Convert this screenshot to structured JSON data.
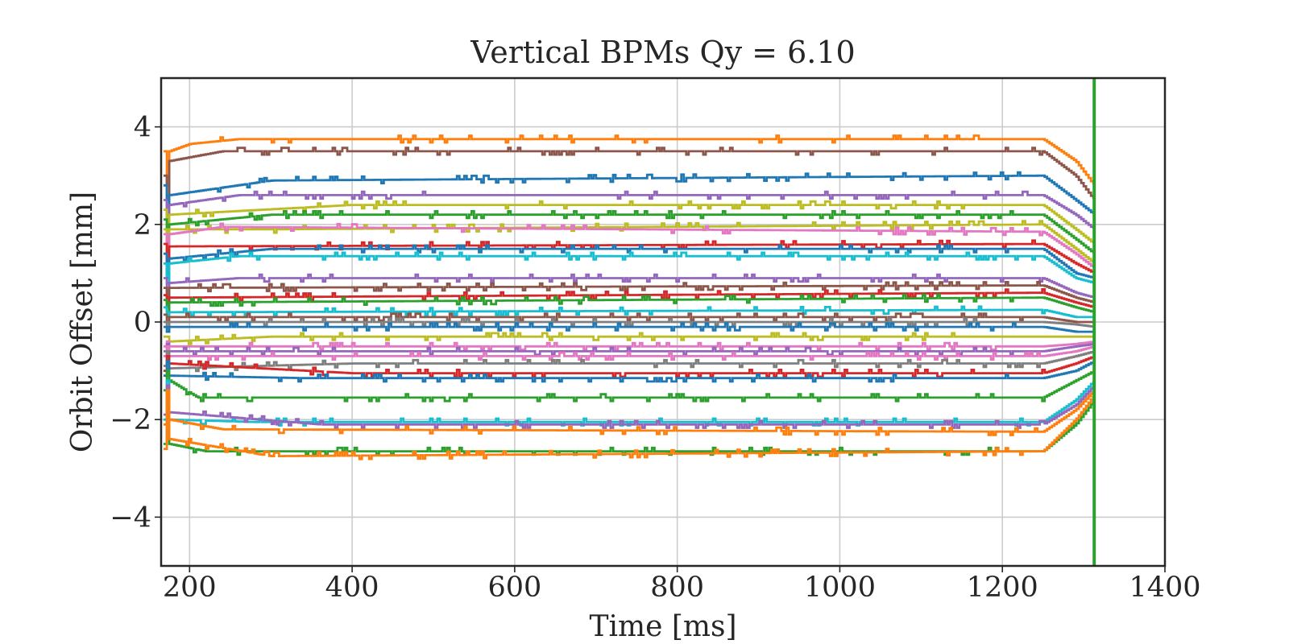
{
  "chart_data": {
    "type": "line",
    "title": "Vertical BPMs Qy = 6.10",
    "xlabel": "Time [ms]",
    "ylabel": "Orbit Offset [mm]",
    "xlim": [
      165,
      1400
    ],
    "ylim": [
      -5,
      5
    ],
    "xticks": [
      200,
      400,
      600,
      800,
      1000,
      1200,
      1400
    ],
    "yticks": [
      -4,
      -2,
      0,
      2,
      4
    ],
    "xtick_labels": [
      "200",
      "400",
      "600",
      "800",
      "1000",
      "1200",
      "1400"
    ],
    "ytick_labels": [
      "−4",
      "−2",
      "0",
      "2",
      "4"
    ],
    "grid": true,
    "legend": "none",
    "vline": {
      "x": 1313,
      "color": "#2ca02c"
    },
    "series": [
      {
        "color": "#ff7f0e",
        "start": 3.5,
        "points": [
          [
            175,
            3.5
          ],
          [
            200,
            3.65
          ],
          [
            260,
            3.75
          ],
          [
            1250,
            3.75
          ],
          [
            1290,
            3.3
          ],
          [
            1313,
            2.8
          ]
        ]
      },
      {
        "color": "#8c564b",
        "start": 3.0,
        "points": [
          [
            175,
            3.3
          ],
          [
            240,
            3.5
          ],
          [
            1250,
            3.5
          ],
          [
            1290,
            3.0
          ],
          [
            1313,
            2.5
          ]
        ]
      },
      {
        "color": "#1f77b4",
        "start": 2.8,
        "points": [
          [
            175,
            2.6
          ],
          [
            300,
            2.9
          ],
          [
            1250,
            3.0
          ],
          [
            1290,
            2.5
          ],
          [
            1313,
            2.2
          ]
        ]
      },
      {
        "color": "#9467bd",
        "start": 2.5,
        "points": [
          [
            175,
            2.4
          ],
          [
            260,
            2.6
          ],
          [
            1250,
            2.6
          ],
          [
            1290,
            2.2
          ],
          [
            1313,
            1.9
          ]
        ]
      },
      {
        "color": "#bcbd22",
        "start": 2.3,
        "points": [
          [
            175,
            2.2
          ],
          [
            400,
            2.4
          ],
          [
            1250,
            2.4
          ],
          [
            1290,
            1.9
          ],
          [
            1313,
            1.6
          ]
        ]
      },
      {
        "color": "#2ca02c",
        "start": 2.1,
        "points": [
          [
            175,
            2.0
          ],
          [
            300,
            2.2
          ],
          [
            1250,
            2.2
          ],
          [
            1290,
            1.7
          ],
          [
            1313,
            1.4
          ]
        ]
      },
      {
        "color": "#bcbd22",
        "start": 1.9,
        "points": [
          [
            175,
            1.9
          ],
          [
            300,
            1.9
          ],
          [
            1250,
            2.0
          ],
          [
            1290,
            1.5
          ],
          [
            1313,
            1.2
          ]
        ]
      },
      {
        "color": "#e377c2",
        "start": 1.8,
        "points": [
          [
            175,
            1.8
          ],
          [
            240,
            1.95
          ],
          [
            1250,
            1.85
          ],
          [
            1290,
            1.4
          ],
          [
            1313,
            1.1
          ]
        ]
      },
      {
        "color": "#d62728",
        "start": 1.6,
        "points": [
          [
            175,
            1.55
          ],
          [
            1250,
            1.6
          ],
          [
            1290,
            1.2
          ],
          [
            1313,
            1.0
          ]
        ]
      },
      {
        "color": "#1f77b4",
        "start": 1.4,
        "points": [
          [
            175,
            1.3
          ],
          [
            300,
            1.5
          ],
          [
            1250,
            1.5
          ],
          [
            1290,
            1.0
          ],
          [
            1313,
            0.9
          ]
        ]
      },
      {
        "color": "#17becf",
        "start": 1.2,
        "points": [
          [
            175,
            1.2
          ],
          [
            260,
            1.35
          ],
          [
            1250,
            1.35
          ],
          [
            1290,
            0.9
          ],
          [
            1313,
            0.8
          ]
        ]
      },
      {
        "color": "#9467bd",
        "start": 0.9,
        "points": [
          [
            175,
            0.8
          ],
          [
            260,
            0.9
          ],
          [
            1250,
            0.9
          ],
          [
            1290,
            0.6
          ],
          [
            1313,
            0.5
          ]
        ]
      },
      {
        "color": "#8c564b",
        "start": 0.7,
        "points": [
          [
            175,
            0.7
          ],
          [
            1250,
            0.75
          ],
          [
            1290,
            0.5
          ],
          [
            1313,
            0.4
          ]
        ]
      },
      {
        "color": "#d62728",
        "start": 0.55,
        "points": [
          [
            175,
            0.5
          ],
          [
            1250,
            0.6
          ],
          [
            1290,
            0.4
          ],
          [
            1313,
            0.3
          ]
        ]
      },
      {
        "color": "#2ca02c",
        "start": 0.45,
        "points": [
          [
            175,
            0.4
          ],
          [
            1250,
            0.5
          ],
          [
            1290,
            0.3
          ],
          [
            1313,
            0.2
          ]
        ]
      },
      {
        "color": "#17becf",
        "start": 0.3,
        "points": [
          [
            175,
            0.2
          ],
          [
            1250,
            0.25
          ],
          [
            1290,
            0.1
          ],
          [
            1313,
            0.1
          ]
        ]
      },
      {
        "color": "#8c564b",
        "start": 0.15,
        "points": [
          [
            175,
            0.1
          ],
          [
            1250,
            0.1
          ],
          [
            1290,
            0.0
          ],
          [
            1313,
            0.0
          ]
        ]
      },
      {
        "color": "#7f7f7f",
        "start": 0.0,
        "points": [
          [
            175,
            0.0
          ],
          [
            1250,
            0.0
          ],
          [
            1290,
            -0.05
          ],
          [
            1313,
            -0.1
          ]
        ]
      },
      {
        "color": "#1f77b4",
        "start": -0.1,
        "points": [
          [
            175,
            -0.1
          ],
          [
            1250,
            -0.1
          ],
          [
            1290,
            -0.2
          ],
          [
            1313,
            -0.2
          ]
        ]
      },
      {
        "color": "#bcbd22",
        "start": -0.3,
        "points": [
          [
            175,
            -0.4
          ],
          [
            300,
            -0.3
          ],
          [
            1250,
            -0.3
          ],
          [
            1290,
            -0.3
          ],
          [
            1313,
            -0.3
          ]
        ]
      },
      {
        "color": "#e377c2",
        "start": -0.5,
        "points": [
          [
            175,
            -0.5
          ],
          [
            1250,
            -0.5
          ],
          [
            1290,
            -0.45
          ],
          [
            1313,
            -0.4
          ]
        ]
      },
      {
        "color": "#9467bd",
        "start": -0.6,
        "points": [
          [
            175,
            -0.6
          ],
          [
            1250,
            -0.6
          ],
          [
            1290,
            -0.5
          ],
          [
            1313,
            -0.45
          ]
        ]
      },
      {
        "color": "#e377c2",
        "start": -0.7,
        "points": [
          [
            175,
            -0.7
          ],
          [
            1250,
            -0.7
          ],
          [
            1290,
            -0.6
          ],
          [
            1313,
            -0.5
          ]
        ]
      },
      {
        "color": "#7f7f7f",
        "start": -0.9,
        "points": [
          [
            175,
            -0.95
          ],
          [
            400,
            -0.85
          ],
          [
            1250,
            -0.85
          ],
          [
            1290,
            -0.7
          ],
          [
            1313,
            -0.6
          ]
        ]
      },
      {
        "color": "#d62728",
        "start": -1.0,
        "points": [
          [
            175,
            -0.85
          ],
          [
            400,
            -1.05
          ],
          [
            1250,
            -1.05
          ],
          [
            1290,
            -0.85
          ],
          [
            1313,
            -0.7
          ]
        ]
      },
      {
        "color": "#1f77b4",
        "start": -1.1,
        "points": [
          [
            175,
            -1.1
          ],
          [
            340,
            -1.15
          ],
          [
            1250,
            -1.15
          ],
          [
            1290,
            -1.0
          ],
          [
            1313,
            -0.8
          ]
        ]
      },
      {
        "color": "#2ca02c",
        "start": -1.4,
        "points": [
          [
            175,
            -1.2
          ],
          [
            210,
            -1.55
          ],
          [
            1250,
            -1.55
          ],
          [
            1290,
            -1.2
          ],
          [
            1313,
            -1.0
          ]
        ]
      },
      {
        "color": "#17becf",
        "start": -2.0,
        "points": [
          [
            175,
            -2.0
          ],
          [
            280,
            -2.05
          ],
          [
            1250,
            -2.05
          ],
          [
            1290,
            -1.6
          ],
          [
            1313,
            -1.2
          ]
        ]
      },
      {
        "color": "#9467bd",
        "start": -1.9,
        "points": [
          [
            175,
            -1.85
          ],
          [
            360,
            -2.1
          ],
          [
            1250,
            -2.1
          ],
          [
            1290,
            -1.7
          ],
          [
            1313,
            -1.3
          ]
        ]
      },
      {
        "color": "#ff7f0e",
        "start": -2.1,
        "points": [
          [
            175,
            -2.0
          ],
          [
            240,
            -2.2
          ],
          [
            1250,
            -2.25
          ],
          [
            1290,
            -1.8
          ],
          [
            1313,
            -1.4
          ]
        ]
      },
      {
        "color": "#2ca02c",
        "start": -2.5,
        "points": [
          [
            175,
            -2.5
          ],
          [
            220,
            -2.65
          ],
          [
            1250,
            -2.65
          ],
          [
            1290,
            -2.1
          ],
          [
            1313,
            -1.6
          ]
        ]
      },
      {
        "color": "#ff7f0e",
        "start": -2.6,
        "points": [
          [
            175,
            -2.4
          ],
          [
            300,
            -2.75
          ],
          [
            1250,
            -2.65
          ],
          [
            1290,
            -2.0
          ],
          [
            1313,
            -1.5
          ]
        ]
      }
    ]
  }
}
